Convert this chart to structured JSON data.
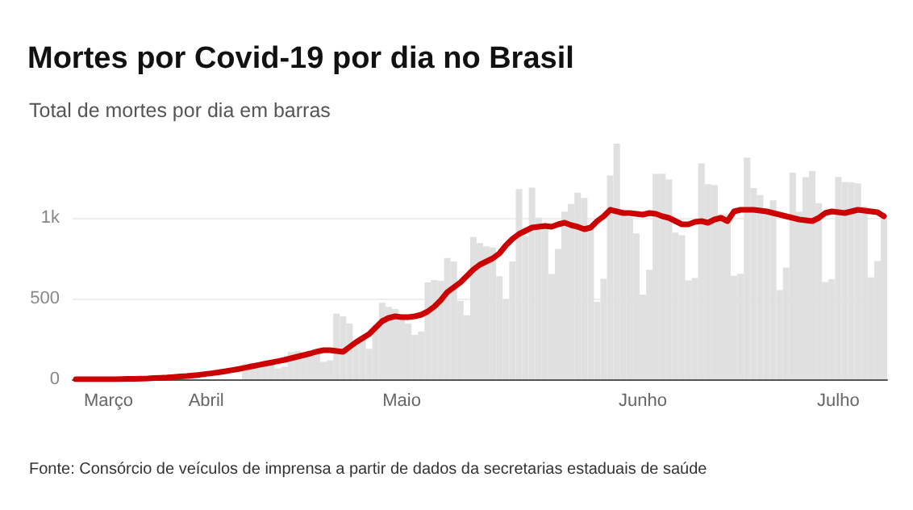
{
  "chart_data": {
    "type": "bar",
    "title": "Mortes por Covid-19 por dia no Brasil",
    "subtitle": "Total de mortes por dia em barras",
    "annotations": [
      "Fonte: Consórcio de veículos de imprensa a partir de dados da secretarias estaduais de saúde"
    ],
    "categories": [
      null,
      null,
      null,
      null,
      null,
      "Março",
      null,
      null,
      null,
      null,
      null,
      null,
      null,
      null,
      null,
      null,
      null,
      null,
      null,
      null,
      "Abril",
      null,
      null,
      null,
      null,
      null,
      null,
      null,
      null,
      null,
      null,
      null,
      null,
      null,
      null,
      null,
      null,
      null,
      null,
      null,
      null,
      null,
      null,
      null,
      null,
      null,
      null,
      null,
      null,
      null,
      "Maio",
      null,
      null,
      null,
      null,
      null,
      null,
      null,
      null,
      null,
      null,
      null,
      null,
      null,
      null,
      null,
      null,
      null,
      null,
      null,
      null,
      null,
      null,
      null,
      null,
      null,
      null,
      null,
      null,
      null,
      null,
      null,
      null,
      null,
      null,
      null,
      null,
      "Junho",
      null,
      null,
      null,
      null,
      null,
      null,
      null,
      null,
      null,
      null,
      null,
      null,
      null,
      null,
      null,
      null,
      null,
      null,
      null,
      null,
      null,
      null,
      null,
      null,
      null,
      null,
      null,
      null,
      null,
      "Julho",
      null,
      null,
      null,
      null,
      null,
      null,
      null
    ],
    "series": [
      {
        "color": "#e0e0e0",
        "values": [
          null,
          null,
          null,
          null,
          null,
          null,
          null,
          null,
          null,
          null,
          null,
          null,
          null,
          null,
          null,
          null,
          null,
          null,
          null,
          null,
          null,
          null,
          null,
          null,
          null,
          null,
          94,
          100,
          97,
          101,
          99,
          67,
          78,
          169,
          175,
          165,
          168,
          163,
          108,
          117,
          407,
          390,
          346,
          240,
          240,
          189,
          338,
          474,
          449,
          435,
          396,
          346,
          275,
          296,
          600,
          615,
          610,
          751,
          730,
          485,
          396,
          881,
          844,
          824,
          816,
          639,
          496,
          730,
          1179,
          888,
          1188,
          1001,
          965,
          653,
          807,
          1039,
          1086,
          1156,
          1124,
          956,
          480,
          623,
          1262,
          1460,
          1030,
          1005,
          904,
          525,
          679,
          1272,
          1274,
          1239,
          909,
          892,
          612,
          627,
          1338,
          1209,
          1204,
          1022,
          1022,
          641,
          654,
          1374,
          1185,
          1141,
          1055,
          1109,
          552,
          692,
          1280,
          1038,
          1252,
          1290,
          1091,
          602,
          620,
          1254,
          1223,
          1220,
          1214,
          1071,
          631,
          733,
          1000
        ]
      },
      {
        "type": "line",
        "color": "#cc0000",
        "values": [
          0,
          0,
          0,
          0,
          0,
          0,
          0,
          1,
          2,
          3,
          4,
          5,
          7,
          9,
          11,
          14,
          17,
          20,
          24,
          28,
          33,
          38,
          44,
          50,
          57,
          64,
          72,
          80,
          88,
          96,
          104,
          112,
          120,
          130,
          140,
          150,
          160,
          172,
          180,
          180,
          175,
          170,
          200,
          230,
          255,
          280,
          320,
          360,
          380,
          390,
          385,
          385,
          390,
          400,
          420,
          450,
          490,
          540,
          570,
          600,
          640,
          680,
          710,
          730,
          750,
          780,
          830,
          870,
          900,
          920,
          940,
          945,
          950,
          945,
          960,
          970,
          955,
          945,
          930,
          940,
          980,
          1010,
          1050,
          1040,
          1030,
          1030,
          1025,
          1020,
          1030,
          1025,
          1010,
          1000,
          980,
          960,
          960,
          975,
          980,
          970,
          990,
          1000,
          980,
          1040,
          1050,
          1050,
          1050,
          1045,
          1040,
          1030,
          1020,
          1010,
          1000,
          990,
          985,
          980,
          1000,
          1030,
          1040,
          1035,
          1030,
          1040,
          1050,
          1045,
          1040,
          1035,
          1010
        ]
      }
    ],
    "ylim": [
      0,
      1460
    ],
    "yticks": [
      0,
      500,
      {
        "value": 1000,
        "label": "1k"
      }
    ],
    "grid": "y",
    "marker": "none",
    "line_style": "solid"
  }
}
